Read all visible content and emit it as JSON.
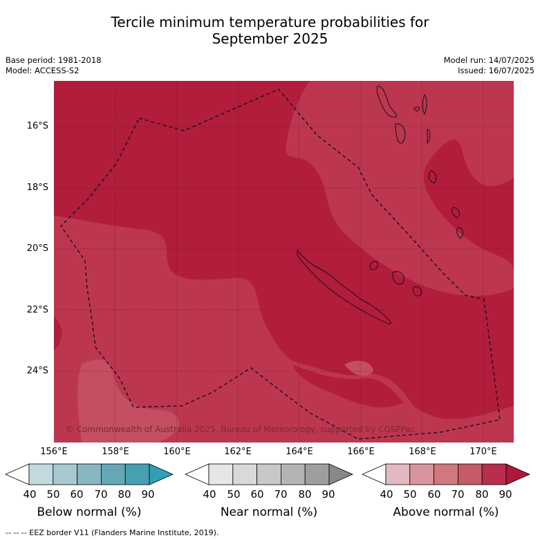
{
  "title_line1": "Tercile minimum temperature probabilities for",
  "title_line2": "September 2025",
  "base_period": "Base period: 1981-2018",
  "model": "Model: ACCESS-S2",
  "model_run": "Model run: 14/07/2025",
  "issued": "Issued: 16/07/2025",
  "copyright": "© Commonwealth of Australia 2025, Bureau of Meteorology, supported by COSPPac",
  "lat_labels": [
    "16°S",
    "18°S",
    "20°S",
    "22°S",
    "24°S"
  ],
  "lon_labels": [
    "156°E",
    "158°E",
    "160°E",
    "162°E",
    "164°E",
    "166°E",
    "168°E",
    "170°E"
  ],
  "colorbars": [
    {
      "label": "Below normal (%)",
      "ticks": [
        "40",
        "50",
        "60",
        "70",
        "80",
        "90"
      ],
      "colors": [
        "#ffffff",
        "#c4d8df",
        "#a7c8cf",
        "#88b5c2",
        "#66a7b6",
        "#45a0b2",
        "#2fa0b5"
      ]
    },
    {
      "label": "Near normal (%)",
      "ticks": [
        "40",
        "50",
        "60",
        "70",
        "80",
        "90"
      ],
      "colors": [
        "#ffffff",
        "#e6e6e6",
        "#d9d9d9",
        "#c8c8c8",
        "#b4b4b4",
        "#9e9e9e",
        "#888888"
      ]
    },
    {
      "label": "Above normal (%)",
      "ticks": [
        "40",
        "50",
        "60",
        "70",
        "80",
        "90"
      ],
      "colors": [
        "#ffffff",
        "#e2b8c1",
        "#d8949c",
        "#cf787f",
        "#c55a68",
        "#b92e4d",
        "#b0173a"
      ]
    }
  ],
  "footer": "--  --  -- EEZ border V11 (Flanders Marine Institute, 2019).",
  "colors": {
    "above_80_90": "#b21d3c",
    "above_70_80": "#bd3650",
    "above_60_70": "#c44e62"
  }
}
